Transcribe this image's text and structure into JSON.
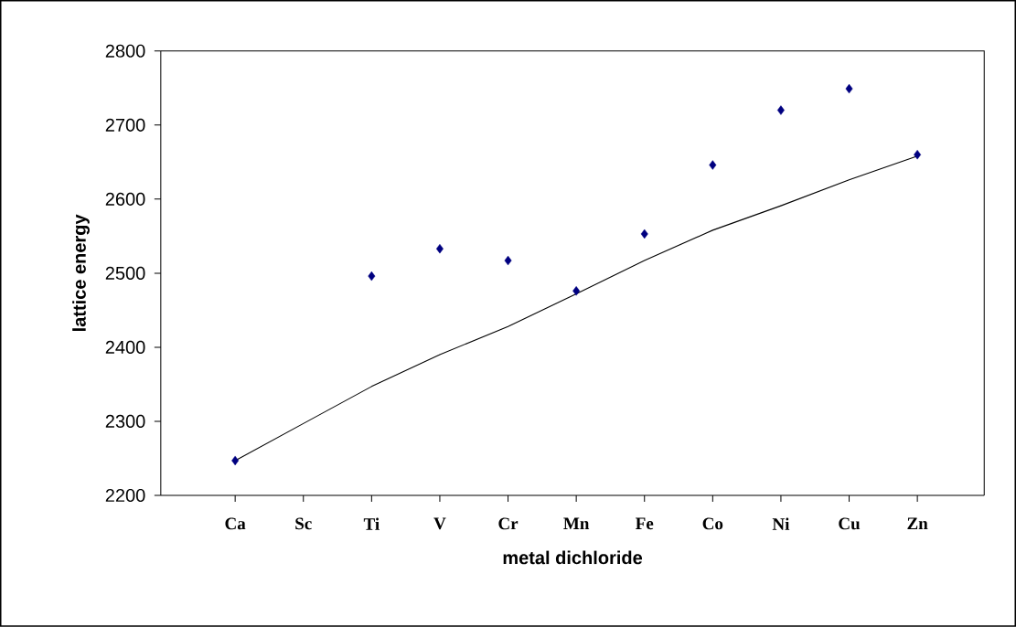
{
  "chart_data": {
    "type": "scatter",
    "xlabel": "metal dichloride",
    "ylabel": "lattice energy",
    "categories": [
      "Ca",
      "Sc",
      "Ti",
      "V",
      "Cr",
      "Mn",
      "Fe",
      "Co",
      "Ni",
      "Cu",
      "Zn"
    ],
    "ylim": [
      2200,
      2800
    ],
    "yticks": [
      2200,
      2300,
      2400,
      2500,
      2600,
      2700,
      2800
    ],
    "series": [
      {
        "marker": "diamond",
        "color": "#000080",
        "values": [
          2247,
          null,
          2496,
          2533,
          2517,
          2476,
          2553,
          2646,
          2720,
          2749,
          2660
        ]
      },
      {
        "type": "line",
        "marker": "none",
        "line_style": "solid",
        "color": "#000000",
        "values": [
          2247,
          2297,
          2347,
          2390,
          2428,
          2472,
          2517,
          2558,
          2591,
          2626,
          2658
        ]
      }
    ]
  }
}
